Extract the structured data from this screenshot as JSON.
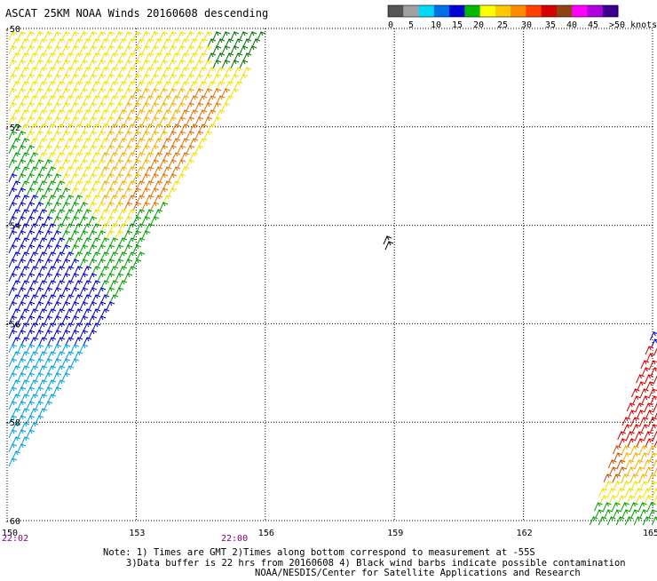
{
  "title": "ASCAT 25KM NOAA Winds 20160608 descending",
  "legend": {
    "colors": [
      "#555555",
      "#a0a0a0",
      "#00d8f8",
      "#0070e8",
      "#0000d8",
      "#00b800",
      "#ffff00",
      "#ffc800",
      "#ff8c00",
      "#ff4000",
      "#d80000",
      "#8b4513",
      "#ff00ff",
      "#b000e0",
      "#3c0090"
    ],
    "labels": [
      "0",
      "5",
      "10",
      "15",
      "20",
      "25",
      "30",
      "35",
      "40",
      "45",
      ">50 knots"
    ]
  },
  "lat_labels": [
    "-50",
    "-52",
    "-54",
    "-56",
    "-58",
    "-60"
  ],
  "lon_labels": [
    "150",
    "153",
    "156",
    "159",
    "162",
    "165"
  ],
  "time_labels": {
    "left": "22:02",
    "middle": "22:00"
  },
  "time_color": "#800080",
  "notes": [
    "Note: 1) Times are GMT 2)Times along bottom correspond to measurement at -55S",
    "3)Data buffer is 22 hrs from 20160608 4) Black wind barbs indicate possible contamination",
    "NOAA/NESDIS/Center for Satellite Applications and Research"
  ],
  "wind_colors": {
    "yellow": "#f0e000",
    "light_orange": "#f0b000",
    "orange": "#e07000",
    "green": "#00a000",
    "dark_green": "#007000",
    "blue": "#0000c8",
    "light_blue": "#00a0e0",
    "red": "#d00000",
    "brown": "#c05000",
    "contamination": "#000000"
  }
}
